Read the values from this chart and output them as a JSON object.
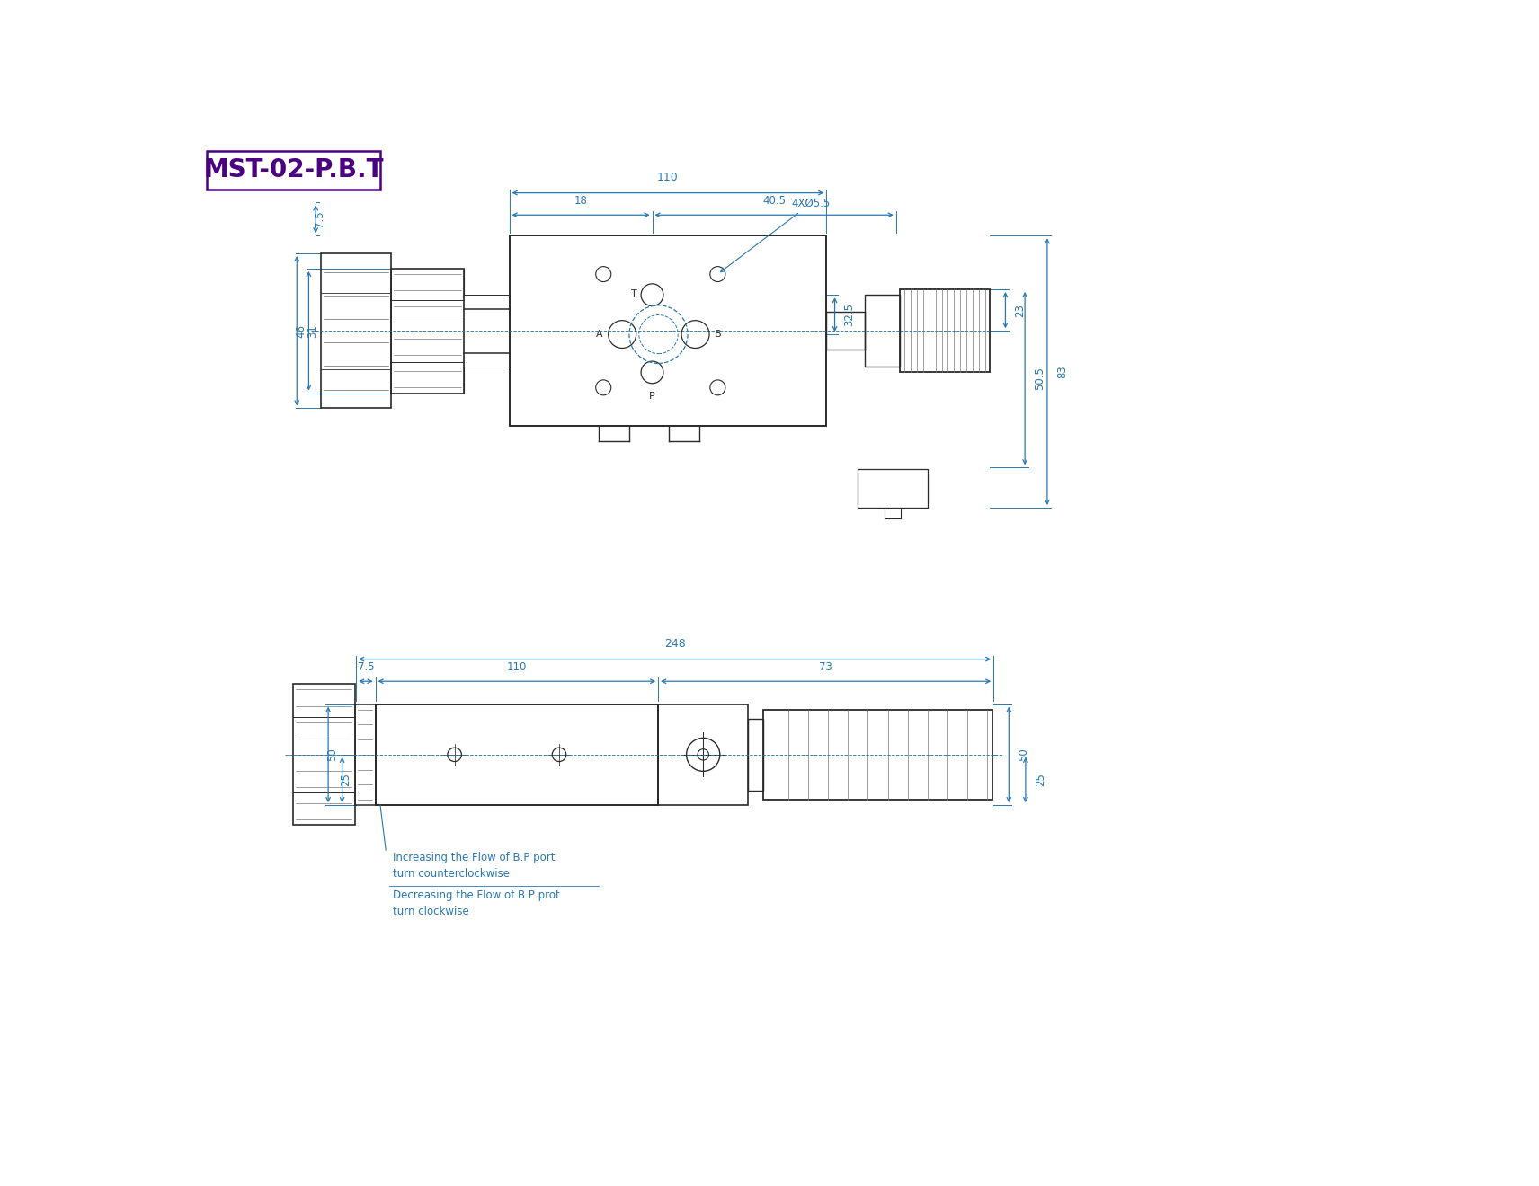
{
  "title": "MST-02-P.B.T",
  "title_color": "#4B0082",
  "dim_color": "#2878B0",
  "line_color": "#2A2A2A",
  "bg_color": "#FFFFFF",
  "note1_line1": "Increasing the Flow of B.P port",
  "note1_line2": "turn counterclockwise",
  "note2_line1": "Decreasing the Flow of B.P prot",
  "note2_line2": "turn clockwise"
}
